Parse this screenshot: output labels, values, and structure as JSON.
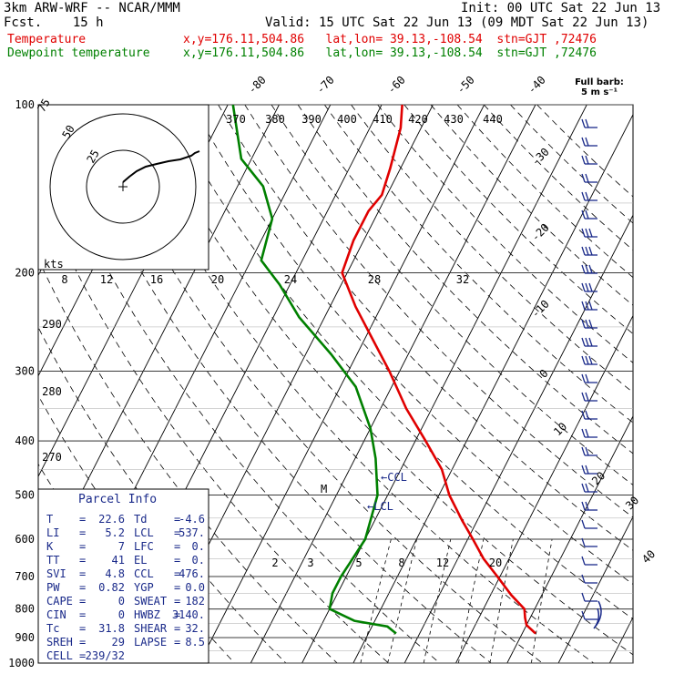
{
  "header": {
    "model": "3km ARW-WRF -- NCAR/MMM",
    "init": "Init: 00 UTC Sat 22 Jun 13",
    "fcst": "Fcst.    15 h",
    "valid": "Valid: 15 UTC Sat 22 Jun 13 (09 MDT Sat 22 Jun 13)",
    "temp_label": "Temperature",
    "dew_label": "Dewpoint temperature",
    "temp_loc": "x,y=176.11,504.86   lat,lon= 39.13,-108.54  stn=GJT ,72476",
    "dew_loc": "x,y=176.11,504.86   lat,lon= 39.13,-108.54  stn=GJT ,72476"
  },
  "barb_legend": {
    "title": "Full barb:",
    "value": "5 m s⁻¹"
  },
  "colors": {
    "temperature": "#e00000",
    "dewpoint": "#008000",
    "info": "#1a2a8a",
    "barb": "#1a2a8a"
  },
  "chart_data": {
    "type": "line",
    "title": "",
    "y_axis": {
      "name": "",
      "scale": "log-pressure",
      "units": "hPa",
      "range": [
        100,
        1000
      ],
      "ticks": [
        100,
        200,
        300,
        400,
        500,
        600,
        700,
        800,
        900,
        1000
      ]
    },
    "isotherm_labels": [
      "-80",
      "-70",
      "-60",
      "-50",
      "-40",
      "-30",
      "-20",
      "-10",
      "0",
      "10",
      "20",
      "30",
      "40"
    ],
    "theta_labels": [
      "370",
      "380",
      "390",
      "400",
      "410",
      "420",
      "430",
      "440",
      "290",
      "280",
      "270"
    ],
    "mixing_ratio_labels": [
      "2",
      "3",
      "5",
      "8",
      "12",
      "20"
    ],
    "hodo_speed_labels": [
      "8",
      "12",
      "16",
      "20",
      "24",
      "28",
      "32"
    ],
    "hodo_ring_labels": [
      "75",
      "50",
      "25"
    ],
    "hodo_units": "kts",
    "series": [
      {
        "name": "Temperature",
        "color": "#e00000",
        "points": [
          [
            885,
            22.6
          ],
          [
            855,
            20
          ],
          [
            830,
            19
          ],
          [
            800,
            18
          ],
          [
            755,
            14
          ],
          [
            700,
            9.5
          ],
          [
            650,
            5
          ],
          [
            600,
            1
          ],
          [
            555,
            -3
          ],
          [
            500,
            -8
          ],
          [
            450,
            -12
          ],
          [
            400,
            -18
          ],
          [
            350,
            -25
          ],
          [
            300,
            -32
          ],
          [
            260,
            -39
          ],
          [
            230,
            -45
          ],
          [
            200,
            -51
          ],
          [
            175,
            -52
          ],
          [
            155,
            -52
          ],
          [
            145,
            -51
          ],
          [
            130,
            -52
          ],
          [
            110,
            -54
          ],
          [
            100,
            -56
          ]
        ]
      },
      {
        "name": "Dewpoint temperature",
        "color": "#008000",
        "points": [
          [
            885,
            -4.6
          ],
          [
            860,
            -7
          ],
          [
            840,
            -14
          ],
          [
            800,
            -20
          ],
          [
            750,
            -21
          ],
          [
            700,
            -21
          ],
          [
            600,
            -20
          ],
          [
            500,
            -22
          ],
          [
            430,
            -26
          ],
          [
            380,
            -30
          ],
          [
            320,
            -37
          ],
          [
            280,
            -45
          ],
          [
            240,
            -55
          ],
          [
            210,
            -62
          ],
          [
            190,
            -68
          ],
          [
            160,
            -70
          ],
          [
            140,
            -75
          ],
          [
            125,
            -82
          ],
          [
            110,
            -86
          ],
          [
            100,
            -89
          ]
        ]
      }
    ],
    "annotations": [
      "M",
      "←CCL",
      "←LCL"
    ],
    "grid": true
  },
  "parcel_info": {
    "title": "Parcel Info",
    "rows": [
      {
        "k1": "T",
        "v1": "22.6",
        "k2": "Td",
        "v2": "-4.6"
      },
      {
        "k1": "LI",
        "v1": "5.2",
        "k2": "LCL",
        "v2": "537."
      },
      {
        "k1": "K",
        "v1": "7",
        "k2": "LFC",
        "v2": "0."
      },
      {
        "k1": "TT",
        "v1": "41",
        "k2": "EL",
        "v2": "0."
      },
      {
        "k1": "SVI",
        "v1": "4.8",
        "k2": "CCL",
        "v2": "476."
      },
      {
        "k1": "PW",
        "v1": "0.82",
        "k2": "YGP",
        "v2": "0.0"
      },
      {
        "k1": "CAPE",
        "v1": "0",
        "k2": "SWEAT",
        "v2": "182"
      },
      {
        "k1": "CIN",
        "v1": "0",
        "k2": "HWBZ",
        "v2": "3140."
      },
      {
        "k1": "Tc",
        "v1": "31.8",
        "k2": "SHEAR",
        "v2": "32."
      },
      {
        "k1": "SREH",
        "v1": "29",
        "k2": "LAPSE",
        "v2": "8.5"
      },
      {
        "k1": "CELL",
        "v1": "239/32",
        "k2": "",
        "v2": ""
      }
    ]
  }
}
